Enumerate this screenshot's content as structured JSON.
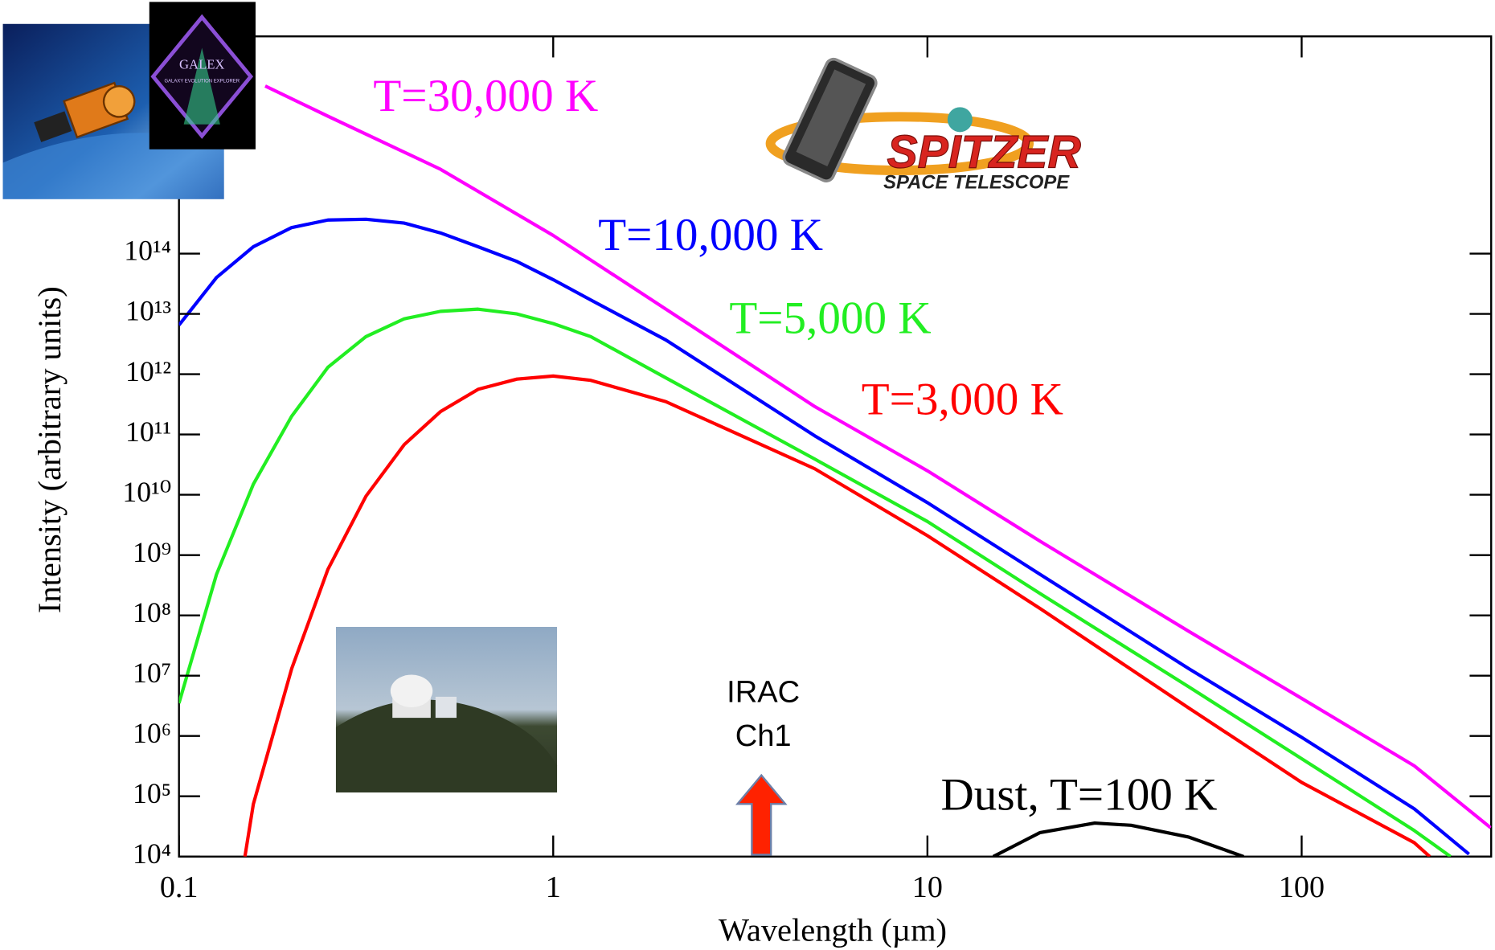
{
  "chart_data": {
    "type": "line",
    "xlabel": "Wavelength (µm)",
    "ylabel": "Intensity (arbitrary units)",
    "xscale": "log",
    "yscale": "log",
    "xlim": [
      0.1,
      320
    ],
    "ylim": [
      10000,
      4e+17
    ],
    "xticks": [
      0.1,
      1,
      10,
      100
    ],
    "yticks": [
      {
        "value": 10000,
        "label": "10⁴"
      },
      {
        "value": 100000,
        "label": "10⁵"
      },
      {
        "value": 1000000,
        "label": "10⁶"
      },
      {
        "value": 10000000,
        "label": "10⁷"
      },
      {
        "value": 100000000,
        "label": "10⁸"
      },
      {
        "value": 1000000000,
        "label": "10⁹"
      },
      {
        "value": 10000000000,
        "label": "10¹⁰"
      },
      {
        "value": 100000000000,
        "label": "10¹¹"
      },
      {
        "value": 1000000000000,
        "label": "10¹²"
      },
      {
        "value": 10000000000000,
        "label": "10¹³"
      },
      {
        "value": 100000000000000,
        "label": "10¹⁴"
      }
    ],
    "series": [
      {
        "name": "T=30,000 K",
        "color": "#ff00ff",
        "x": [
          0.17,
          0.25,
          0.5,
          1,
          2,
          5,
          10,
          20,
          50,
          100,
          200,
          320
        ],
        "values": [
          6e+16,
          1.9e+16,
          2500000000000000.0,
          200000000000000.0,
          12000000000000.0,
          290000000000.0,
          25000000000.0,
          1700000000.0,
          54000000.0,
          4200000.0,
          320000.0,
          30000.0
        ]
      },
      {
        "name": "T=10,000 K",
        "color": "#0000ff",
        "x": [
          0.1,
          0.126,
          0.158,
          0.2,
          0.25,
          0.316,
          0.4,
          0.5,
          0.63,
          0.8,
          1,
          1.26,
          2,
          5,
          10,
          20,
          50,
          100,
          200,
          280
        ],
        "values": [
          6500000000000.0,
          40000000000000.0,
          130000000000000.0,
          270000000000000.0,
          360000000000000.0,
          370000000000000.0,
          320000000000000.0,
          220000000000000.0,
          130000000000000.0,
          74000000000000.0,
          37000000000000.0,
          17000000000000.0,
          3700000000000.0,
          95000000000.0,
          7400000000.0,
          480000000.0,
          13000000.0,
          950000.0,
          62000.0,
          11000.0
        ]
      },
      {
        "name": "T=5,000 K",
        "color": "#22ee22",
        "x": [
          0.1,
          0.126,
          0.158,
          0.2,
          0.25,
          0.316,
          0.4,
          0.5,
          0.63,
          0.8,
          1,
          1.26,
          2,
          5,
          10,
          20,
          50,
          100,
          200,
          250
        ],
        "values": [
          3500000.0,
          480000000.0,
          15000000000.0,
          200000000000.0,
          1300000000000.0,
          4200000000000.0,
          8300000000000.0,
          11000000000000.0,
          12000000000000.0,
          10000000000000.0,
          6900000000000.0,
          4200000000000.0,
          870000000000.0,
          39000000000.0,
          3600000000.0,
          230000000.0,
          6500000.0,
          420000.0,
          27000.0,
          10000.0
        ]
      },
      {
        "name": "T=3,000 K",
        "color": "#ff0000",
        "x": [
          0.15,
          0.158,
          0.2,
          0.25,
          0.316,
          0.4,
          0.5,
          0.63,
          0.8,
          1,
          1.26,
          2,
          5,
          10,
          20,
          50,
          100,
          200,
          220
        ],
        "values": [
          10000.0,
          74000.0,
          13000000.0,
          580000000.0,
          9500000000.0,
          68000000000.0,
          240000000000.0,
          560000000000.0,
          830000000000.0,
          930000000000.0,
          790000000000.0,
          350000000000.0,
          27000000000.0,
          2100000000.0,
          130000000.0,
          2900000.0,
          170000.0,
          17000.0,
          10000.0
        ]
      },
      {
        "name": "Dust, T=100 K",
        "color": "#000000",
        "x": [
          15,
          20,
          28,
          35,
          50,
          70
        ],
        "values": [
          10000.0,
          25000.0,
          36000.0,
          33000.0,
          21000.0,
          10000.0
        ]
      }
    ],
    "annotations": [
      {
        "text": [
          "IRAC",
          "Ch1"
        ],
        "x": 3.6,
        "color": "#ff2200"
      }
    ],
    "galex_logo": [
      "GALEX",
      "GALAXY EVOLUTION EXPLORER"
    ],
    "spitzer_logo": [
      "SPITZER",
      "SPACE TELESCOPE"
    ]
  }
}
